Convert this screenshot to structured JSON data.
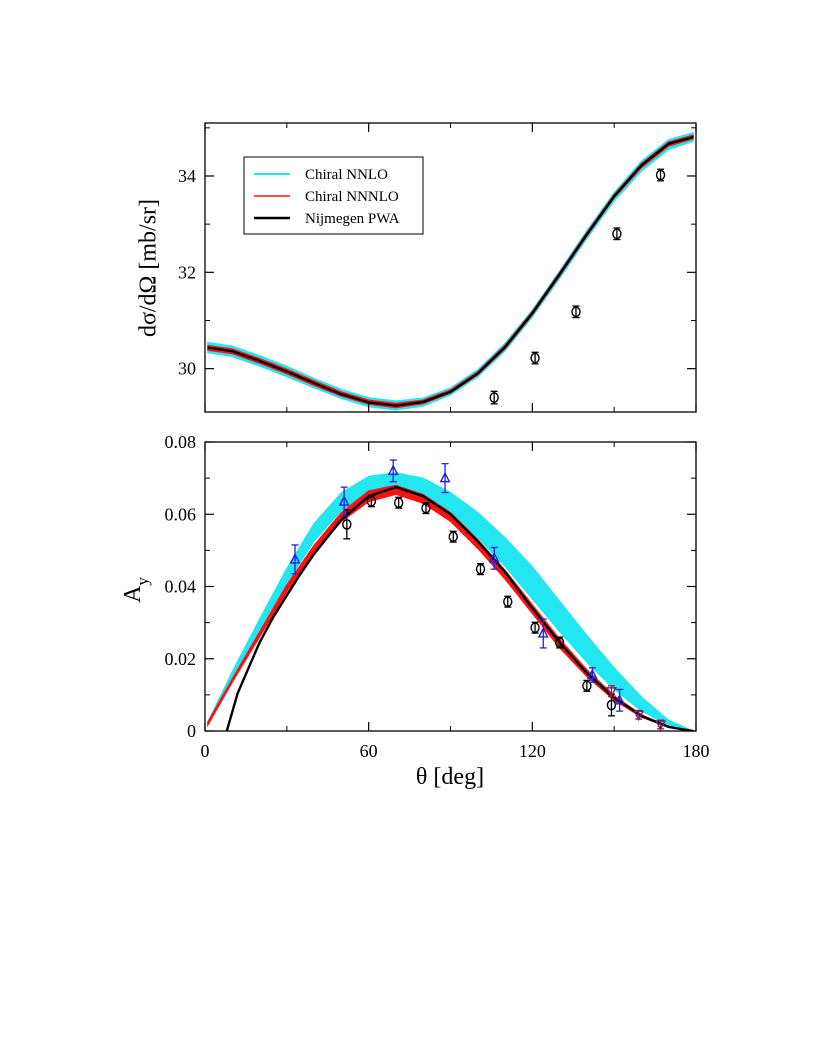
{
  "chart_data": [
    {
      "type": "line",
      "panel": "top",
      "ylabel": "dσ/dΩ  [mb/sr]",
      "xlabel": "",
      "xlim": [
        0,
        180
      ],
      "ylim": [
        29.1,
        35.1
      ],
      "xticks": [
        0,
        60,
        120,
        180
      ],
      "yticks": [
        30,
        32,
        34
      ],
      "ytick_labels": [
        "30",
        "32",
        "34"
      ],
      "grid": false,
      "legend_position": "top-left",
      "legend": [
        {
          "label": "Chiral NNLO",
          "color": "#22e6f0"
        },
        {
          "label": "Chiral NNNLO",
          "color": "#ff1010"
        },
        {
          "label": "Nijmegen PWA",
          "color": "#000000"
        }
      ],
      "series": [
        {
          "name": "Chiral NNLO",
          "kind": "band",
          "color": "#22e6f0",
          "x": [
            1,
            10,
            20,
            30,
            40,
            50,
            60,
            70,
            80,
            90,
            100,
            110,
            120,
            130,
            140,
            150,
            160,
            170,
            179
          ],
          "lower": [
            30.33,
            30.25,
            30.05,
            29.83,
            29.6,
            29.38,
            29.21,
            29.14,
            29.22,
            29.45,
            29.83,
            30.37,
            31.07,
            31.87,
            32.7,
            33.48,
            34.1,
            34.55,
            34.72
          ],
          "upper": [
            30.55,
            30.47,
            30.27,
            30.05,
            29.8,
            29.57,
            29.4,
            29.33,
            29.39,
            29.6,
            29.98,
            30.53,
            31.22,
            32.03,
            32.87,
            33.66,
            34.31,
            34.76,
            34.9
          ]
        },
        {
          "name": "Chiral NNNLO",
          "kind": "band",
          "color": "#ff1010",
          "x": [
            1,
            10,
            20,
            30,
            40,
            50,
            60,
            70,
            80,
            90,
            100,
            110,
            120,
            130,
            140,
            150,
            160,
            170,
            179
          ],
          "lower": [
            30.38,
            30.31,
            30.11,
            29.89,
            29.65,
            29.43,
            29.26,
            29.19,
            29.27,
            29.49,
            29.87,
            30.41,
            31.11,
            31.92,
            32.75,
            33.54,
            34.17,
            34.62,
            34.77
          ],
          "upper": [
            30.48,
            30.41,
            30.21,
            29.99,
            29.75,
            29.52,
            29.35,
            29.28,
            29.35,
            29.56,
            29.94,
            30.49,
            31.19,
            32.0,
            32.83,
            33.62,
            34.26,
            34.71,
            34.85
          ]
        },
        {
          "name": "Nijmegen PWA",
          "kind": "line",
          "color": "#000000",
          "x": [
            1,
            10,
            20,
            30,
            40,
            50,
            60,
            70,
            80,
            90,
            100,
            110,
            120,
            130,
            140,
            150,
            160,
            170,
            179
          ],
          "y": [
            30.44,
            30.36,
            30.16,
            29.94,
            29.7,
            29.47,
            29.3,
            29.23,
            29.31,
            29.52,
            29.9,
            30.45,
            31.15,
            31.96,
            32.79,
            33.58,
            34.22,
            34.67,
            34.81
          ]
        },
        {
          "name": "data-circles",
          "kind": "points",
          "marker": "circle",
          "color": "#000000",
          "x": [
            106,
            121,
            136,
            151,
            167
          ],
          "y": [
            29.4,
            30.22,
            31.18,
            32.8,
            34.02
          ],
          "err": [
            0.13,
            0.12,
            0.12,
            0.12,
            0.12
          ]
        }
      ]
    },
    {
      "type": "line",
      "panel": "bottom",
      "ylabel": "A",
      "ylabel_sub": "y",
      "xlabel": "θ  [deg]",
      "xlim": [
        0,
        180
      ],
      "ylim": [
        0,
        0.08
      ],
      "xticks": [
        0,
        60,
        120,
        180
      ],
      "xtick_labels": [
        "0",
        "60",
        "120",
        "180"
      ],
      "yticks": [
        0,
        0.02,
        0.04,
        0.06,
        0.08
      ],
      "ytick_labels": [
        "0",
        "0.02",
        "0.04",
        "0.06",
        "0.08"
      ],
      "grid": false,
      "series": [
        {
          "name": "Chiral NNLO",
          "kind": "band",
          "color": "#22e6f0",
          "x": [
            1,
            10,
            20,
            30,
            40,
            50,
            60,
            70,
            80,
            90,
            100,
            110,
            120,
            130,
            140,
            150,
            160,
            170,
            179
          ],
          "lower": [
            0.0015,
            0.0145,
            0.028,
            0.041,
            0.0525,
            0.061,
            0.0665,
            0.0675,
            0.0655,
            0.0605,
            0.0535,
            0.0455,
            0.0365,
            0.0275,
            0.019,
            0.0115,
            0.0055,
            0.0015,
            0.0
          ],
          "upper": [
            0.0025,
            0.0165,
            0.031,
            0.045,
            0.0575,
            0.066,
            0.0705,
            0.0715,
            0.07,
            0.066,
            0.0605,
            0.0535,
            0.0455,
            0.036,
            0.0265,
            0.0175,
            0.0095,
            0.003,
            0.0
          ]
        },
        {
          "name": "Chiral NNNLO",
          "kind": "band",
          "color": "#ff1010",
          "x": [
            1,
            10,
            20,
            30,
            40,
            50,
            60,
            70,
            80,
            90,
            100,
            110,
            120,
            130,
            140,
            150,
            160,
            170,
            179
          ],
          "lower": [
            0.0015,
            0.0135,
            0.026,
            0.0385,
            0.0495,
            0.058,
            0.0635,
            0.0655,
            0.063,
            0.058,
            0.0505,
            0.042,
            0.0325,
            0.023,
            0.015,
            0.0085,
            0.0038,
            0.001,
            0.0
          ],
          "upper": [
            0.0025,
            0.0145,
            0.0275,
            0.0405,
            0.0515,
            0.0605,
            0.0665,
            0.068,
            0.0655,
            0.0605,
            0.053,
            0.0445,
            0.035,
            0.0255,
            0.017,
            0.0098,
            0.0045,
            0.0013,
            0.0
          ]
        },
        {
          "name": "Nijmegen PWA",
          "kind": "line",
          "color": "#000000",
          "x": [
            8,
            12,
            16,
            20,
            25,
            30,
            35,
            40,
            50,
            60,
            70,
            80,
            90,
            100,
            110,
            120,
            130,
            140,
            150,
            160,
            170,
            179
          ],
          "y": [
            0.0,
            0.0105,
            0.0175,
            0.0245,
            0.0315,
            0.0375,
            0.0435,
            0.049,
            0.0585,
            0.065,
            0.0675,
            0.065,
            0.06,
            0.0525,
            0.044,
            0.034,
            0.0245,
            0.016,
            0.0092,
            0.0042,
            0.0011,
            0.0
          ]
        },
        {
          "name": "data-circles",
          "kind": "points",
          "marker": "circle",
          "color": "#000000",
          "x": [
            52,
            61,
            71,
            81,
            91,
            101,
            111,
            121,
            130,
            140,
            149
          ],
          "y": [
            0.0572,
            0.0636,
            0.0632,
            0.0617,
            0.0538,
            0.0448,
            0.0358,
            0.0286,
            0.0245,
            0.0125,
            0.0072
          ],
          "err": [
            0.004,
            0.0015,
            0.0015,
            0.0015,
            0.0015,
            0.0015,
            0.0015,
            0.0015,
            0.0015,
            0.0015,
            0.003
          ]
        },
        {
          "name": "data-triangles-up",
          "kind": "points",
          "marker": "triangle-up",
          "color": "#2020e0",
          "x": [
            33,
            51,
            69,
            88,
            106,
            124,
            142,
            152
          ],
          "y": [
            0.0475,
            0.0635,
            0.072,
            0.07,
            0.0478,
            0.027,
            0.0155,
            0.0085
          ],
          "err": [
            0.004,
            0.004,
            0.003,
            0.004,
            0.003,
            0.004,
            0.002,
            0.003
          ]
        },
        {
          "name": "data-triangles-down",
          "kind": "points",
          "marker": "triangle-down",
          "color": "#7a2060",
          "x": [
            149,
            159,
            167
          ],
          "y": [
            0.011,
            0.0045,
            0.0018
          ],
          "err": [
            0.0015,
            0.0012,
            0.0012
          ]
        }
      ]
    }
  ]
}
